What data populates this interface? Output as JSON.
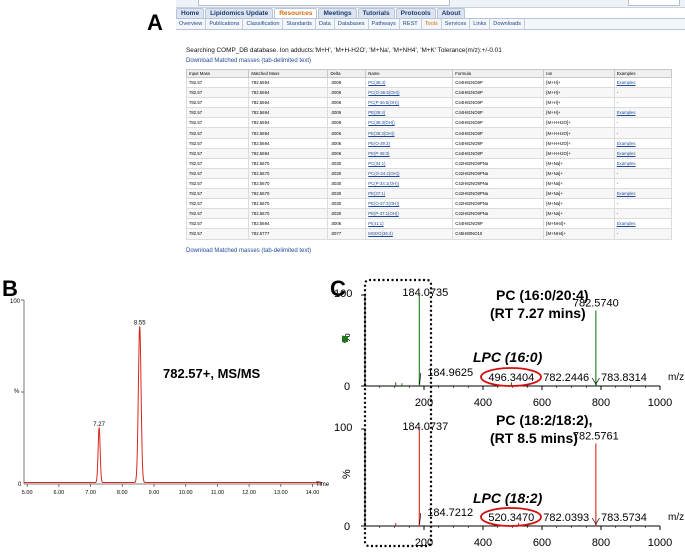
{
  "panel_labels": {
    "a": "A",
    "b": "B",
    "c": "C"
  },
  "web_page": {
    "nav_tabs": [
      {
        "label": "Home",
        "active": false
      },
      {
        "label": "Lipidomics Update",
        "active": false
      },
      {
        "label": "Resources",
        "active": true
      },
      {
        "label": "Meetings",
        "active": false
      },
      {
        "label": "Tutorials",
        "active": false
      },
      {
        "label": "Protocols",
        "active": false
      },
      {
        "label": "About",
        "active": false
      }
    ],
    "sub_nav": [
      {
        "label": "Overview",
        "active": false
      },
      {
        "label": "Publications",
        "active": false
      },
      {
        "label": "Classification",
        "active": false
      },
      {
        "label": "Standards",
        "active": false
      },
      {
        "label": "Data",
        "active": false
      },
      {
        "label": "Databases",
        "active": false
      },
      {
        "label": "Pathways",
        "active": false
      },
      {
        "label": "REST",
        "active": false
      },
      {
        "label": "Tools",
        "active": true
      },
      {
        "label": "Services",
        "active": false
      },
      {
        "label": "Links",
        "active": false
      },
      {
        "label": "Downloads",
        "active": false
      }
    ],
    "search_text": "Searching COMP_DB database. Ion adducts:'M+H', 'M+H-H2O', 'M+Na', 'M+NH4', 'M+K' Tolerance(m/z):+/-0.01",
    "download_link": "Download Matched masses (tab-delimited text)",
    "table_headers": [
      "Input Mass",
      "Matched Mass",
      "Delta",
      "Name",
      "Formula",
      "Ion",
      "Examples"
    ],
    "table_rows": [
      [
        "782.57",
        "782.5694",
        ".0006",
        "PC(36:4)",
        "C44H81NO8P",
        "[M+H]+",
        "Examples"
      ],
      [
        "782.57",
        "782.5694",
        ".0006",
        "PC(O-36:5(OH))",
        "C44H81NO8P",
        "[M+H]+",
        "-"
      ],
      [
        "782.57",
        "782.5694",
        ".0006",
        "PC(P-36:5(OH))",
        "C44H81NO8P",
        "[M+H]+",
        "-"
      ],
      [
        "782.57",
        "782.5694",
        ".0006",
        "PE(39:4)",
        "C44H81NO8P",
        "[M+H]+",
        "Examples"
      ],
      [
        "782.57",
        "782.5694",
        ".0006",
        "PC(36:3(OH))",
        "C44H81NO8P",
        "[M+H-H2O]+",
        "-"
      ],
      [
        "782.57",
        "782.5694",
        ".0006",
        "PE(39:3(OH))",
        "C44H81NO8P",
        "[M+H-H2O]+",
        "-"
      ],
      [
        "782.57",
        "782.5694",
        ".0006",
        "PE(O-39:3)",
        "C44H81NO8P",
        "[M+H-H2O]+",
        "Examples"
      ],
      [
        "782.57",
        "782.5694",
        ".0006",
        "PE(P-39:3)",
        "C44H81NO8P",
        "[M+H-H2O]+",
        "Examples"
      ],
      [
        "782.57",
        "782.5670",
        ".0030",
        "PC(34:1)",
        "C42H82NO8PNa",
        "[M+Na]+",
        "Examples"
      ],
      [
        "782.57",
        "782.5670",
        ".0030",
        "PC(O-34:2(OH))",
        "C42H82NO8PNa",
        "[M+Na]+",
        "-"
      ],
      [
        "782.57",
        "782.5670",
        ".0030",
        "PC(P-34:1(OH))",
        "C42H82NO8PNa",
        "[M+Na]+",
        "-"
      ],
      [
        "782.57",
        "782.5670",
        ".0030",
        "PE(37:1)",
        "C42H82NO8PNa",
        "[M+Na]+",
        "Examples"
      ],
      [
        "782.57",
        "782.5670",
        ".0030",
        "PE(O-37:2(OH))",
        "C42H82NO8PNa",
        "[M+Na]+",
        "-"
      ],
      [
        "782.57",
        "782.5670",
        ".0030",
        "PE(P-37:1(OH))",
        "C42H82NO8PNa",
        "[M+Na]+",
        "-"
      ],
      [
        "782.57",
        "782.5694",
        ".0006",
        "PI(41:1)",
        "C44H81NO8P",
        "[M+NH4]+",
        "Examples"
      ],
      [
        "782.57",
        "782.5777",
        ".0077",
        "MGDG(36:4)",
        "C45H80NO10",
        "[M+NH4]+",
        "-"
      ]
    ],
    "download_link_bottom": "Download Matched masses (tab-delimited text)"
  },
  "panel_b": {
    "annotation": "782.57+, MS/MS",
    "peak_labels": [
      "7.27",
      "8.55"
    ],
    "y_top_label": "100",
    "y_mid_label": "%",
    "y_bottom_label": "0",
    "x_axis_title": "Time",
    "x_ticks": [
      "5.00",
      "6.00",
      "7.00",
      "8.00",
      "9.00",
      "10.00",
      "11.00",
      "12.00",
      "13.00",
      "14.00"
    ]
  },
  "panel_c": {
    "top": {
      "compound": "PC (16:0/20:4)",
      "rt": "(RT 7.27 mins)",
      "fragment_label": "LPC (16:0)",
      "peak_labels": [
        "184.0735",
        "184.9625",
        "496.3404",
        "782.2446",
        "782.5740",
        "783.8314"
      ],
      "color": "#1a7a1a"
    },
    "bottom": {
      "compound": "PC (18:2/18:2),",
      "rt": "(RT  8.5 mins)",
      "fragment_label": "LPC (18:2)",
      "peak_labels": [
        "184.0737",
        "184.7212",
        "520.3470",
        "782.0393",
        "782.5761",
        "783.5734"
      ],
      "color": "#d9261c"
    },
    "y_top_label": "100",
    "y_mid_label": "%",
    "y_bottom_label": "0",
    "x_axis_title": "m/z",
    "x_ticks": [
      "200",
      "400",
      "600",
      "800",
      "1000"
    ],
    "highlight_color": "#d01010"
  },
  "chart_data": [
    {
      "type": "line",
      "panel": "B",
      "xlabel": "Time",
      "ylabel": "%",
      "xlim": [
        4.9,
        14.3
      ],
      "ylim": [
        0,
        100
      ],
      "x_ticks": [
        5,
        6,
        7,
        8,
        9,
        10,
        11,
        12,
        13,
        14
      ],
      "peaks": [
        {
          "x": 7.27,
          "y": 30,
          "label": "7.27"
        },
        {
          "x": 8.55,
          "y": 85,
          "label": "8.55"
        }
      ],
      "color": "#d9261c"
    },
    {
      "type": "bar",
      "panel": "C-top",
      "xlabel": "m/z",
      "ylabel": "%",
      "xlim": [
        0,
        1000
      ],
      "ylim": [
        0,
        100
      ],
      "x_ticks": [
        200,
        400,
        600,
        800,
        1000
      ],
      "peaks": [
        {
          "x": 104,
          "y": 4
        },
        {
          "x": 125,
          "y": 3
        },
        {
          "x": 184.0735,
          "y": 100
        },
        {
          "x": 184.9625,
          "y": 6
        },
        {
          "x": 496.3404,
          "y": 4
        },
        {
          "x": 782.2446,
          "y": 3
        },
        {
          "x": 782.574,
          "y": 83
        },
        {
          "x": 783.8314,
          "y": 2
        }
      ],
      "color": "#1a7a1a"
    },
    {
      "type": "bar",
      "panel": "C-bottom",
      "xlabel": "m/z",
      "ylabel": "%",
      "xlim": [
        0,
        1000
      ],
      "ylim": [
        0,
        100
      ],
      "x_ticks": [
        200,
        400,
        600,
        800,
        1000
      ],
      "peaks": [
        {
          "x": 104,
          "y": 3
        },
        {
          "x": 184.0737,
          "y": 100
        },
        {
          "x": 184.7212,
          "y": 3
        },
        {
          "x": 520.347,
          "y": 3
        },
        {
          "x": 782.0393,
          "y": 2
        },
        {
          "x": 782.5761,
          "y": 85
        },
        {
          "x": 783.5734,
          "y": 2
        }
      ],
      "color": "#d9261c"
    }
  ]
}
